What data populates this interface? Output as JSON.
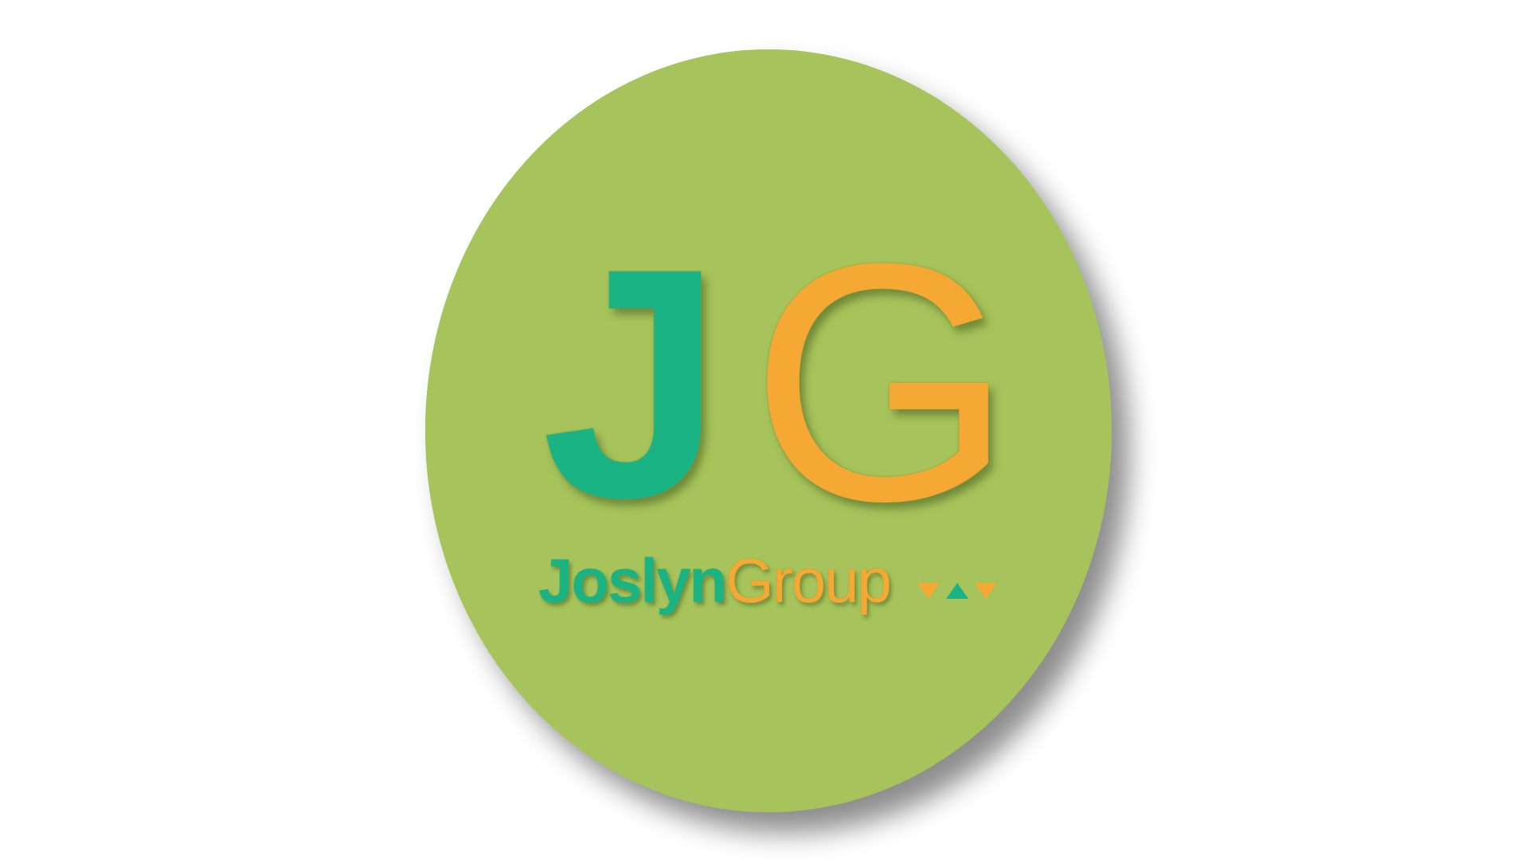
{
  "logo": {
    "monogram_first": "J",
    "monogram_second": "G",
    "name_first": "Joslyn",
    "name_second": "Group",
    "mark_icons": [
      "down-triangle-icon",
      "up-triangle-icon",
      "down-triangle-icon"
    ]
  },
  "colors": {
    "page_background": "#ffffff",
    "badge": "#a6c45b",
    "teal": "#1ab383",
    "orange": "#f5a833",
    "outline": "#7f9a3c"
  }
}
